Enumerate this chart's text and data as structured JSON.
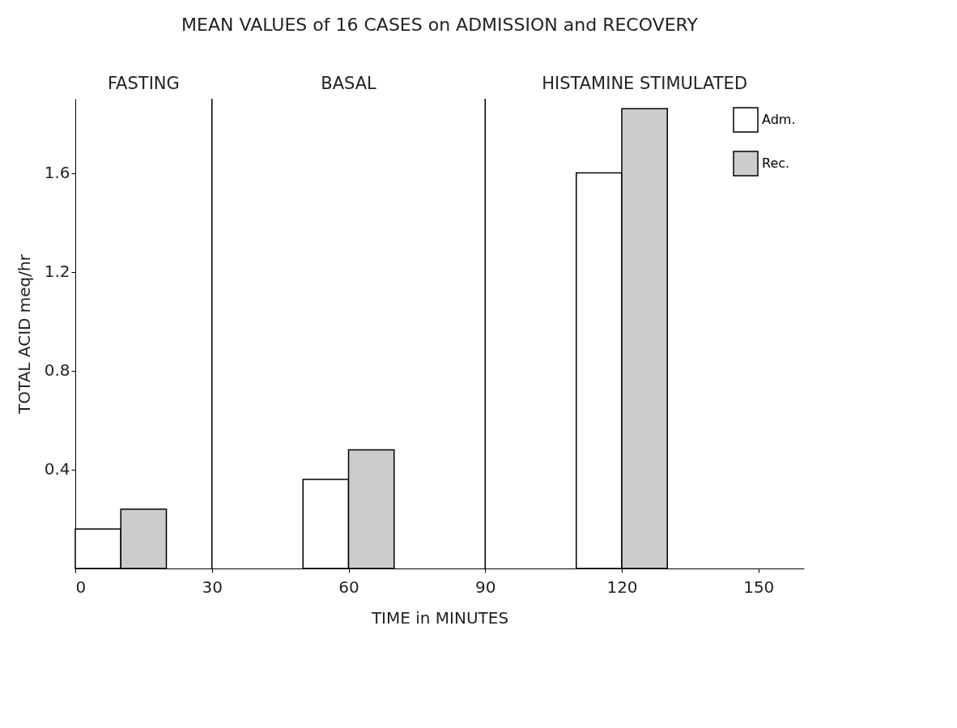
{
  "chart_data": {
    "type": "bar",
    "title": "MEAN VALUES of 16 CASES on ADMISSION and RECOVERY",
    "xlabel": "TIME  in  MINUTES",
    "ylabel": "TOTAL ACID meq/hr",
    "series": [
      {
        "name": "Adm.",
        "color": "#ffffff",
        "x": [
          5,
          55,
          115
        ],
        "values": [
          0.16,
          0.36,
          1.6
        ]
      },
      {
        "name": "Rec.",
        "color": "#cccccc",
        "x": [
          15,
          65,
          125
        ],
        "values": [
          0.24,
          0.48,
          1.86
        ]
      }
    ],
    "xlim": [
      0,
      160
    ],
    "xticks": [
      0,
      30,
      60,
      90,
      120,
      150
    ],
    "ylim": [
      0,
      1.9
    ],
    "yticks": [
      0.4,
      0.8,
      1.2,
      1.6
    ],
    "ref_lines": [
      {
        "axis": "x",
        "value": 30
      },
      {
        "axis": "x",
        "value": 90
      }
    ],
    "annotations": [
      "FASTING",
      "BASAL",
      "HISTAMINE STIMULATED"
    ],
    "grid": false,
    "legend": "top right"
  }
}
